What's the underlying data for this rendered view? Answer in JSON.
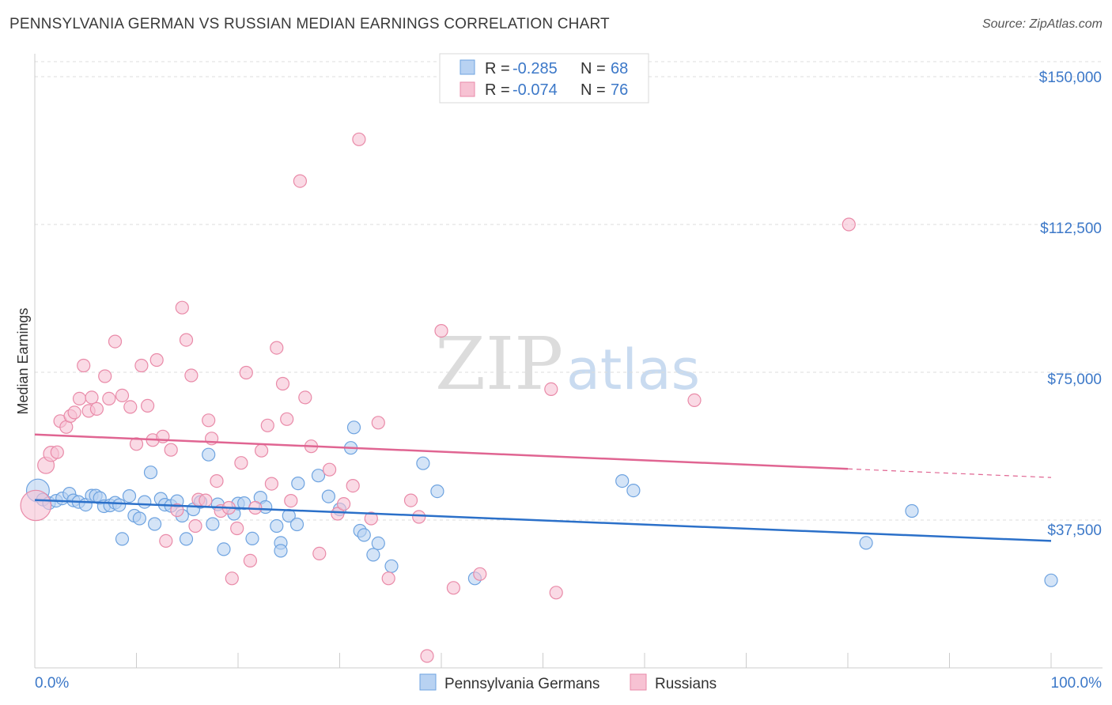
{
  "title": "PENNSYLVANIA GERMAN VS RUSSIAN MEDIAN EARNINGS CORRELATION CHART",
  "source": "Source: ZipAtlas.com",
  "watermark": {
    "zip": "ZIP",
    "atlas": "atlas"
  },
  "legend": {
    "r_label": "R =",
    "n_label": "N =",
    "entries": [
      {
        "r": "-0.285",
        "n": "68"
      },
      {
        "r": "-0.074",
        "n": "76"
      }
    ]
  },
  "chart_data": {
    "type": "scatter",
    "title": "PENNSYLVANIA GERMAN VS RUSSIAN MEDIAN EARNINGS CORRELATION CHART",
    "xlabel": "",
    "ylabel": "Median Earnings",
    "xlim": [
      0,
      100
    ],
    "ylim": [
      0,
      157000
    ],
    "x_tick_labels": [
      "0.0%",
      "100.0%"
    ],
    "y_ticks": [
      37500,
      75000,
      112500,
      150000
    ],
    "y_tick_labels": [
      "$37,500",
      "$75,000",
      "$112,500",
      "$150,000"
    ],
    "grid": true,
    "legend_position": "top-center",
    "series": [
      {
        "name": "Pennsylvania Germans",
        "color": "#6ea3e0",
        "fill": "#b8d2f2",
        "trend_color": "#2b70c9",
        "trend": {
          "x": [
            0,
            100
          ],
          "y": [
            42600,
            32200
          ],
          "dashed_from": null
        },
        "points": [
          [
            0.3,
            45000,
            1.8
          ],
          [
            0.8,
            42700,
            1
          ],
          [
            1.4,
            41800,
            1
          ],
          [
            2.1,
            42400,
            1
          ],
          [
            2.7,
            43000,
            1
          ],
          [
            3.4,
            44200,
            1
          ],
          [
            3.8,
            42500,
            1
          ],
          [
            4.3,
            42100,
            1
          ],
          [
            5.0,
            41400,
            1
          ],
          [
            5.6,
            43700,
            1
          ],
          [
            6.0,
            43700,
            1
          ],
          [
            6.4,
            43100,
            1
          ],
          [
            6.8,
            41000,
            1
          ],
          [
            7.4,
            41200,
            1
          ],
          [
            7.9,
            41900,
            1
          ],
          [
            8.3,
            41300,
            1
          ],
          [
            8.6,
            32700,
            1
          ],
          [
            9.3,
            43600,
            1
          ],
          [
            9.8,
            38600,
            1
          ],
          [
            10.3,
            37900,
            1
          ],
          [
            10.8,
            42100,
            1
          ],
          [
            11.4,
            49600,
            1
          ],
          [
            11.8,
            36500,
            1
          ],
          [
            12.4,
            42900,
            1
          ],
          [
            12.8,
            41400,
            1
          ],
          [
            13.4,
            41100,
            1
          ],
          [
            14.0,
            42300,
            1
          ],
          [
            14.5,
            38600,
            1
          ],
          [
            14.9,
            32700,
            1
          ],
          [
            15.6,
            40200,
            1
          ],
          [
            16.3,
            42100,
            1
          ],
          [
            17.1,
            54100,
            1
          ],
          [
            17.5,
            36500,
            1
          ],
          [
            18.0,
            41500,
            1
          ],
          [
            18.6,
            30100,
            1
          ],
          [
            19.6,
            39100,
            1
          ],
          [
            20.0,
            41700,
            1
          ],
          [
            20.6,
            41800,
            1
          ],
          [
            21.4,
            32800,
            1
          ],
          [
            22.2,
            43200,
            1
          ],
          [
            22.7,
            40800,
            1
          ],
          [
            23.8,
            36000,
            1
          ],
          [
            24.2,
            31700,
            1
          ],
          [
            24.2,
            29700,
            1
          ],
          [
            25.0,
            38600,
            1
          ],
          [
            25.8,
            36400,
            1
          ],
          [
            25.9,
            46800,
            1
          ],
          [
            27.9,
            48800,
            1
          ],
          [
            28.9,
            43500,
            1
          ],
          [
            30.0,
            40200,
            1
          ],
          [
            31.1,
            55800,
            1
          ],
          [
            31.4,
            61000,
            1
          ],
          [
            32.0,
            34800,
            1
          ],
          [
            32.4,
            33700,
            1
          ],
          [
            33.3,
            28700,
            1
          ],
          [
            33.8,
            31600,
            1
          ],
          [
            35.1,
            25800,
            1
          ],
          [
            38.2,
            51900,
            1
          ],
          [
            39.6,
            44800,
            1
          ],
          [
            43.3,
            22700,
            1
          ],
          [
            57.8,
            47400,
            1
          ],
          [
            58.9,
            45000,
            1
          ],
          [
            81.8,
            31700,
            1
          ],
          [
            86.3,
            39800,
            1
          ],
          [
            100.0,
            22200,
            1
          ]
        ]
      },
      {
        "name": "Russians",
        "color": "#e98aa8",
        "fill": "#f7c2d3",
        "trend_color": "#e06592",
        "trend": {
          "x": [
            0,
            100
          ],
          "y": [
            59200,
            48300
          ],
          "dashed_from": 80
        },
        "points": [
          [
            0.1,
            41200,
            2.4
          ],
          [
            1.1,
            51400,
            1.3
          ],
          [
            1.6,
            54300,
            1.2
          ],
          [
            2.2,
            54700,
            1
          ],
          [
            2.5,
            62600,
            1
          ],
          [
            3.1,
            61100,
            1
          ],
          [
            3.5,
            63900,
            1
          ],
          [
            3.9,
            64800,
            1
          ],
          [
            4.4,
            68300,
            1
          ],
          [
            4.8,
            76700,
            1
          ],
          [
            5.3,
            65200,
            1
          ],
          [
            5.6,
            68600,
            1
          ],
          [
            6.1,
            65700,
            1
          ],
          [
            6.9,
            74000,
            1
          ],
          [
            7.3,
            68300,
            1
          ],
          [
            7.9,
            82800,
            1
          ],
          [
            8.6,
            69100,
            1
          ],
          [
            9.4,
            66200,
            1
          ],
          [
            10.0,
            56800,
            1
          ],
          [
            10.5,
            76700,
            1
          ],
          [
            11.1,
            66500,
            1
          ],
          [
            11.6,
            57800,
            1
          ],
          [
            12.0,
            78100,
            1
          ],
          [
            12.6,
            58700,
            1
          ],
          [
            12.9,
            32200,
            1
          ],
          [
            13.4,
            55300,
            1
          ],
          [
            14.0,
            40000,
            1
          ],
          [
            14.5,
            91400,
            1
          ],
          [
            14.9,
            83200,
            1
          ],
          [
            15.4,
            74200,
            1
          ],
          [
            15.8,
            36000,
            1
          ],
          [
            16.1,
            42700,
            1
          ],
          [
            16.8,
            42500,
            1
          ],
          [
            17.1,
            62800,
            1
          ],
          [
            17.4,
            58200,
            1
          ],
          [
            17.9,
            47400,
            1
          ],
          [
            18.3,
            39800,
            1
          ],
          [
            19.1,
            40600,
            1
          ],
          [
            19.4,
            22700,
            1
          ],
          [
            19.9,
            35400,
            1
          ],
          [
            20.3,
            52000,
            1
          ],
          [
            20.8,
            74900,
            1
          ],
          [
            21.2,
            27200,
            1
          ],
          [
            21.7,
            40600,
            1
          ],
          [
            22.3,
            55100,
            1
          ],
          [
            22.9,
            61500,
            1
          ],
          [
            23.3,
            46700,
            1
          ],
          [
            23.8,
            81200,
            1
          ],
          [
            24.4,
            72100,
            1
          ],
          [
            24.8,
            63100,
            1
          ],
          [
            25.2,
            42400,
            1
          ],
          [
            26.1,
            123500,
            1
          ],
          [
            26.6,
            68600,
            1
          ],
          [
            27.2,
            56200,
            1
          ],
          [
            28.0,
            29000,
            1
          ],
          [
            29.0,
            50300,
            1
          ],
          [
            29.8,
            39100,
            1
          ],
          [
            30.4,
            41600,
            1
          ],
          [
            31.3,
            46200,
            1
          ],
          [
            31.9,
            134100,
            1
          ],
          [
            33.1,
            37900,
            1
          ],
          [
            33.8,
            62200,
            1
          ],
          [
            34.8,
            22700,
            1
          ],
          [
            37.0,
            42500,
            1
          ],
          [
            37.8,
            38300,
            1
          ],
          [
            38.6,
            3000,
            1
          ],
          [
            40.0,
            85500,
            1
          ],
          [
            41.2,
            20300,
            1
          ],
          [
            43.8,
            23800,
            1
          ],
          [
            50.8,
            70700,
            1
          ],
          [
            51.3,
            19100,
            1
          ],
          [
            64.9,
            67900,
            1
          ],
          [
            80.1,
            112500,
            1
          ]
        ]
      }
    ]
  }
}
